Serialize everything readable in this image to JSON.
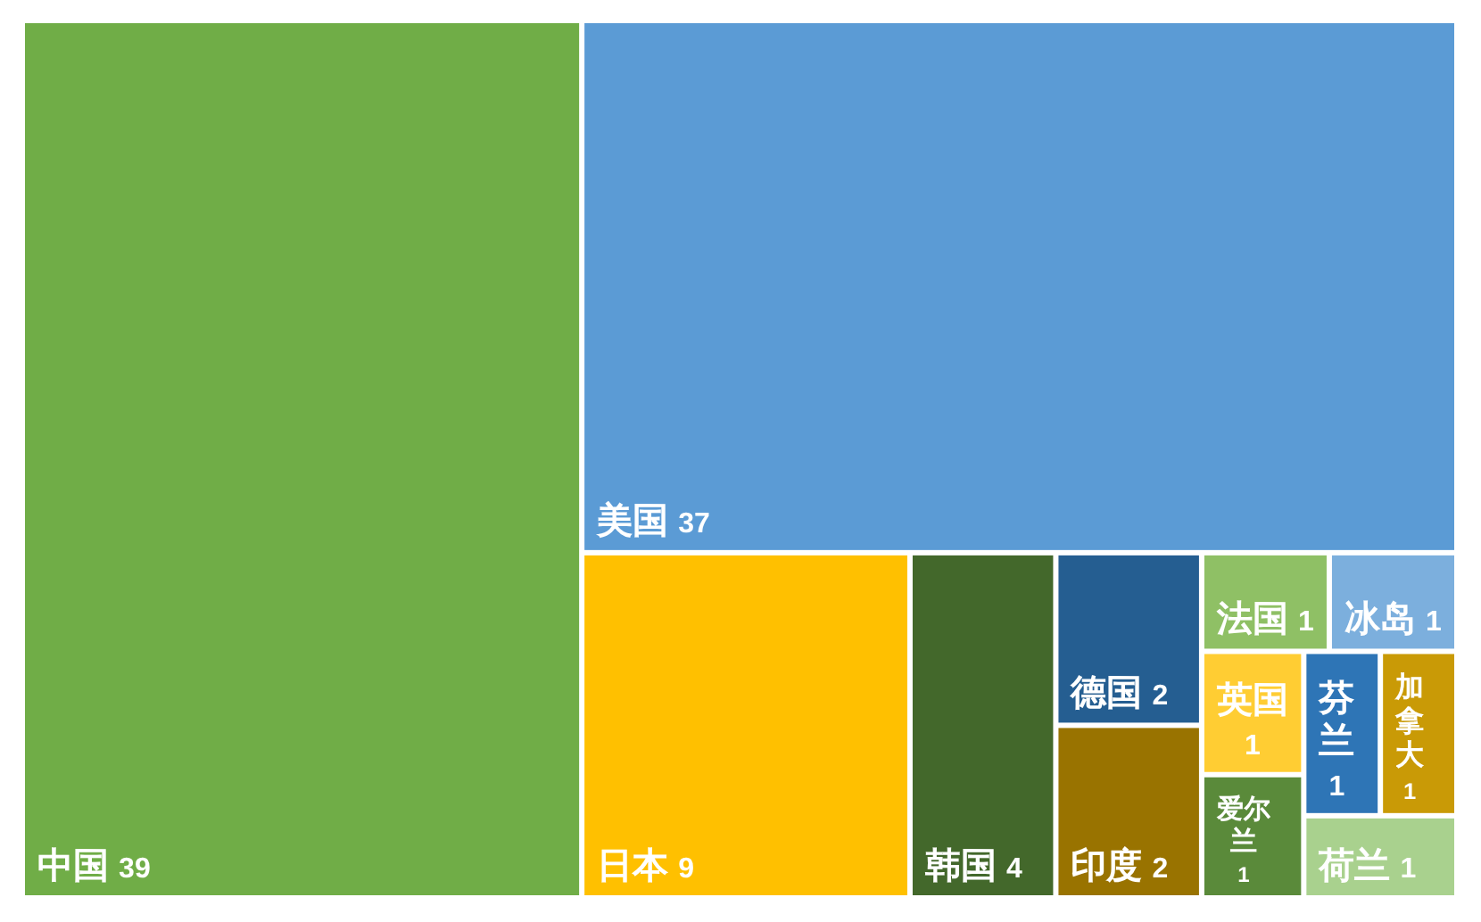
{
  "chart_data": {
    "type": "other",
    "categories": [
      "中国",
      "美国",
      "日本",
      "韩国",
      "德国",
      "印度",
      "法国",
      "冰岛",
      "英国",
      "爱尔兰",
      "芬兰",
      "加拿大",
      "荷兰"
    ],
    "values": [
      39,
      37,
      9,
      4,
      2,
      2,
      1,
      1,
      1,
      1,
      1,
      1,
      1
    ],
    "colors": [
      "#70ad47",
      "#5b9bd5",
      "#ffc000",
      "#43682b",
      "#255e91",
      "#997300",
      "#8fc065",
      "#7cafdd",
      "#ffcd33",
      "#5a8a3a",
      "#2e75b6",
      "#c99a06",
      "#a9d18e"
    ],
    "data_labels": true
  }
}
